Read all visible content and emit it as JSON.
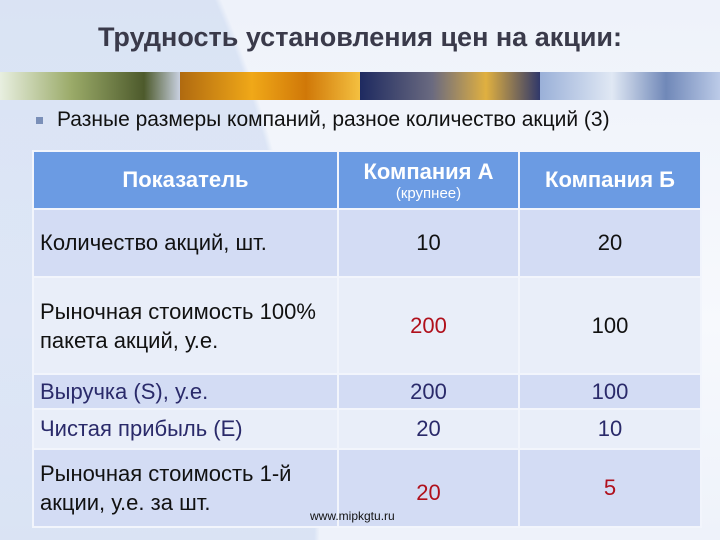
{
  "title": "Трудность установления цен на акции:",
  "bullet": "Разные размеры компаний, разное количество акций (3)",
  "table": {
    "headers": [
      "Показатель",
      "Компания А",
      "Компания Б"
    ],
    "header_note": "(крупнее)",
    "rows": [
      [
        "Количество акций, шт.",
        "10",
        "20"
      ],
      [
        "Рыночная стоимость 100% пакета акций, у.е.",
        "200",
        "100"
      ],
      [
        "Выручка (S), у.е.",
        "200",
        "100"
      ],
      [
        "Чистая прибыль (Е)",
        "20",
        "10"
      ],
      [
        "Рыночная стоимость 1-й акции, у.е. за шт.",
        "20",
        "5"
      ]
    ]
  },
  "footer_url": "www.mipkgtu.ru",
  "colors": {
    "header": "#6b9be3",
    "highlight": "#b0101c"
  }
}
